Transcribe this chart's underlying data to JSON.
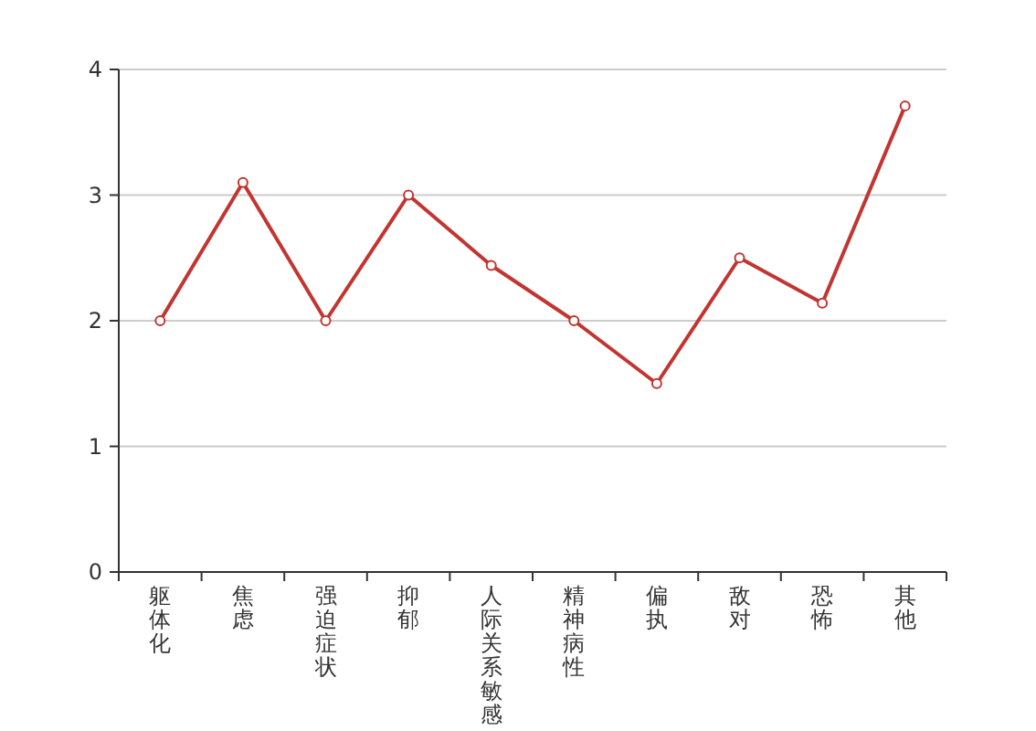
{
  "chart_data": {
    "type": "line",
    "categories": [
      "躯体化",
      "焦虑",
      "强迫症状",
      "抑郁",
      "人际关系敏感",
      "精神病性",
      "偏执",
      "敌对",
      "恐怖",
      "其他"
    ],
    "series": [
      {
        "color": "#c23531",
        "values": [
          2,
          3.1,
          2,
          3,
          2.44,
          2,
          1.5,
          2.5,
          2.14,
          3.71
        ]
      }
    ],
    "ylim": [
      0,
      4
    ],
    "yticks": [
      0,
      1,
      2,
      3,
      4
    ],
    "grid": "y",
    "marker": "circle",
    "line_style": "solid"
  }
}
